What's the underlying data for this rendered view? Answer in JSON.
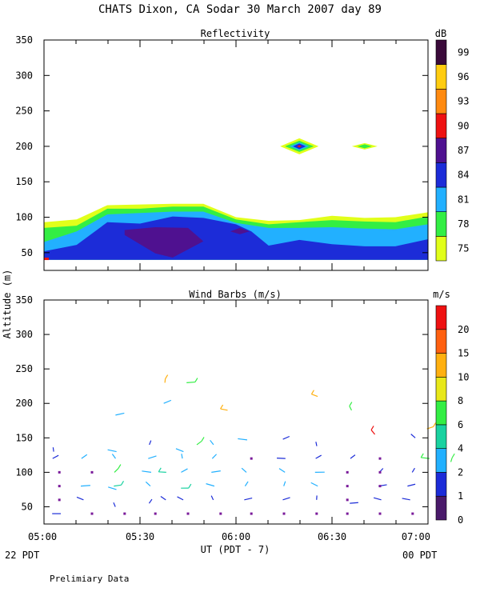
{
  "header": {
    "title": "CHATS Dixon, CA   Sodar   30 March 2007   day  89"
  },
  "footer": {
    "left_date": "22 PDT",
    "right_date": "00 PDT",
    "xlabel": "UT  (PDT - 7)",
    "note": "Prelimiary Data"
  },
  "chart_data": [
    {
      "type": "heatmap",
      "title": "Reflectivity",
      "ylabel": "Altitude (m)",
      "ylim": [
        25,
        350
      ],
      "yticks": [
        50,
        100,
        150,
        200,
        250,
        300,
        350
      ],
      "xticks": [
        "05:00",
        "05:30",
        "06:00",
        "06:30",
        "07:00"
      ],
      "xlim_hours": [
        5.0,
        7.0
      ],
      "colorbar": {
        "unit": "dB",
        "labels": [
          "75",
          "78",
          "81",
          "84",
          "87",
          "90",
          "93",
          "96",
          "99"
        ],
        "colors": [
          "#e1ff1a",
          "#33ee44",
          "#22b0ff",
          "#1c2cd8",
          "#4f1190",
          "#ee1111",
          "#ff8a10",
          "#ffcc10",
          "#3a0a3a"
        ]
      },
      "layers": [
        {
          "dB": 75,
          "top": [
            [
              5.0,
              93
            ],
            [
              5.17,
              97
            ],
            [
              5.33,
              117
            ],
            [
              5.5,
              118
            ],
            [
              5.67,
              119
            ],
            [
              5.83,
              119
            ],
            [
              6.0,
              100
            ],
            [
              6.17,
              95
            ],
            [
              6.33,
              96
            ],
            [
              6.5,
              102
            ],
            [
              6.67,
              99
            ],
            [
              6.83,
              100
            ],
            [
              7.0,
              107
            ]
          ]
        },
        {
          "dB": 78,
          "top": [
            [
              5.0,
              85
            ],
            [
              5.17,
              88
            ],
            [
              5.33,
              112
            ],
            [
              5.5,
              112
            ],
            [
              5.67,
              115
            ],
            [
              5.83,
              115
            ],
            [
              6.0,
              97
            ],
            [
              6.17,
              90
            ],
            [
              6.33,
              93
            ],
            [
              6.5,
              96
            ],
            [
              6.67,
              94
            ],
            [
              6.83,
              93
            ],
            [
              7.0,
              101
            ]
          ]
        },
        {
          "dB": 81,
          "top": [
            [
              5.0,
              65
            ],
            [
              5.17,
              80
            ],
            [
              5.33,
              104
            ],
            [
              5.5,
              106
            ],
            [
              5.67,
              108
            ],
            [
              5.83,
              108
            ],
            [
              6.0,
              92
            ],
            [
              6.17,
              85
            ],
            [
              6.33,
              85
            ],
            [
              6.5,
              86
            ],
            [
              6.67,
              84
            ],
            [
              6.83,
              83
            ],
            [
              7.0,
              90
            ]
          ]
        },
        {
          "dB": 84,
          "top": [
            [
              5.0,
              52
            ],
            [
              5.17,
              61
            ],
            [
              5.33,
              93
            ],
            [
              5.5,
              91
            ],
            [
              5.67,
              101
            ],
            [
              5.83,
              99
            ],
            [
              6.0,
              90
            ],
            [
              6.08,
              80
            ],
            [
              6.17,
              60
            ],
            [
              6.33,
              68
            ],
            [
              6.5,
              62
            ],
            [
              6.67,
              59
            ],
            [
              6.83,
              59
            ],
            [
              7.0,
              69
            ]
          ]
        }
      ],
      "patches": [
        {
          "dB": 87,
          "outline": [
            [
              5.42,
              82
            ],
            [
              5.58,
              86
            ],
            [
              5.75,
              85
            ],
            [
              5.83,
              66
            ],
            [
              5.67,
              43
            ],
            [
              5.58,
              49
            ],
            [
              5.42,
              75
            ]
          ]
        },
        {
          "dB": 87,
          "outline": [
            [
              5.97,
              80
            ],
            [
              6.02,
              85
            ],
            [
              6.07,
              80
            ],
            [
              6.02,
              76
            ]
          ]
        },
        {
          "dB": 75,
          "center": [
            6.33,
            200
          ],
          "peak_dB": 90
        },
        {
          "dB": 75,
          "center": [
            6.67,
            200
          ],
          "peak_dB": 78
        }
      ]
    },
    {
      "type": "scatter",
      "title": "Wind Barbs (m/s)",
      "ylabel": "Altitude (m)",
      "ylim": [
        25,
        350
      ],
      "yticks": [
        50,
        100,
        150,
        200,
        250,
        300,
        350
      ],
      "xticks": [
        "05:00",
        "05:30",
        "06:00",
        "06:30",
        "07:00"
      ],
      "xlim_hours": [
        5.0,
        7.0
      ],
      "colorbar": {
        "unit": "m/s",
        "labels": [
          "0",
          "1",
          "2",
          "4",
          "6",
          "8",
          "10",
          "15",
          "20"
        ],
        "colors": [
          "#4a1a6a",
          "#1c2cd8",
          "#22b0ff",
          "#19d2a0",
          "#33ee44",
          "#e8e81a",
          "#ffb010",
          "#ff6010",
          "#ee1111"
        ]
      },
      "barbs": [
        {
          "t": 5.05,
          "z": 40,
          "c": 1
        },
        {
          "t": 5.05,
          "z": 120,
          "c": 1
        },
        {
          "t": 5.05,
          "z": 130,
          "c": 1
        },
        {
          "t": 5.2,
          "z": 60,
          "c": 1
        },
        {
          "t": 5.2,
          "z": 80,
          "c": 2
        },
        {
          "t": 5.2,
          "z": 120,
          "c": 2
        },
        {
          "t": 5.37,
          "z": 50,
          "c": 1
        },
        {
          "t": 5.37,
          "z": 75,
          "c": 2
        },
        {
          "t": 5.37,
          "z": 80,
          "c": 3
        },
        {
          "t": 5.37,
          "z": 100,
          "c": 4
        },
        {
          "t": 5.37,
          "z": 120,
          "c": 2
        },
        {
          "t": 5.37,
          "z": 130,
          "c": 2
        },
        {
          "t": 5.38,
          "z": 183,
          "c": 2
        },
        {
          "t": 5.55,
          "z": 55,
          "c": 1
        },
        {
          "t": 5.55,
          "z": 80,
          "c": 2
        },
        {
          "t": 5.55,
          "z": 100,
          "c": 2
        },
        {
          "t": 5.55,
          "z": 120,
          "c": 2
        },
        {
          "t": 5.55,
          "z": 140,
          "c": 1
        },
        {
          "t": 5.63,
          "z": 60,
          "c": 1
        },
        {
          "t": 5.63,
          "z": 100,
          "c": 3
        },
        {
          "t": 5.63,
          "z": 200,
          "c": 2
        },
        {
          "t": 5.63,
          "z": 230,
          "c": 6
        },
        {
          "t": 5.72,
          "z": 60,
          "c": 1
        },
        {
          "t": 5.72,
          "z": 77,
          "c": 3
        },
        {
          "t": 5.72,
          "z": 100,
          "c": 2
        },
        {
          "t": 5.72,
          "z": 120,
          "c": 2
        },
        {
          "t": 5.72,
          "z": 130,
          "c": 2
        },
        {
          "t": 5.75,
          "z": 230,
          "c": 4
        },
        {
          "t": 5.8,
          "z": 140,
          "c": 4
        },
        {
          "t": 5.88,
          "z": 60,
          "c": 1
        },
        {
          "t": 5.88,
          "z": 80,
          "c": 2
        },
        {
          "t": 5.88,
          "z": 100,
          "c": 2
        },
        {
          "t": 5.88,
          "z": 120,
          "c": 2
        },
        {
          "t": 5.88,
          "z": 140,
          "c": 2
        },
        {
          "t": 5.95,
          "z": 190,
          "c": 6
        },
        {
          "t": 6.05,
          "z": 60,
          "c": 1
        },
        {
          "t": 6.05,
          "z": 80,
          "c": 2
        },
        {
          "t": 6.05,
          "z": 100,
          "c": 2
        },
        {
          "t": 6.05,
          "z": 147,
          "c": 2
        },
        {
          "t": 6.25,
          "z": 60,
          "c": 1
        },
        {
          "t": 6.25,
          "z": 80,
          "c": 2
        },
        {
          "t": 6.25,
          "z": 100,
          "c": 2
        },
        {
          "t": 6.25,
          "z": 120,
          "c": 1
        },
        {
          "t": 6.25,
          "z": 148,
          "c": 1
        },
        {
          "t": 6.42,
          "z": 60,
          "c": 1
        },
        {
          "t": 6.42,
          "z": 80,
          "c": 2
        },
        {
          "t": 6.42,
          "z": 100,
          "c": 2
        },
        {
          "t": 6.42,
          "z": 120,
          "c": 1
        },
        {
          "t": 6.42,
          "z": 138,
          "c": 1
        },
        {
          "t": 6.42,
          "z": 210,
          "c": 6
        },
        {
          "t": 6.6,
          "z": 55,
          "c": 1
        },
        {
          "t": 6.6,
          "z": 120,
          "c": 1
        },
        {
          "t": 6.6,
          "z": 190,
          "c": 4
        },
        {
          "t": 6.75,
          "z": 60,
          "c": 1
        },
        {
          "t": 6.75,
          "z": 80,
          "c": 1
        },
        {
          "t": 6.75,
          "z": 100,
          "c": 1
        },
        {
          "t": 6.72,
          "z": 155,
          "c": 8
        },
        {
          "t": 6.9,
          "z": 60,
          "c": 1
        },
        {
          "t": 6.9,
          "z": 80,
          "c": 1
        },
        {
          "t": 6.92,
          "z": 100,
          "c": 1
        },
        {
          "t": 6.93,
          "z": 150,
          "c": 1
        },
        {
          "t": 7.0,
          "z": 120,
          "c": 4
        },
        {
          "t": 7.0,
          "z": 163,
          "c": 6
        },
        {
          "t": 7.12,
          "z": 115,
          "c": 4
        }
      ],
      "points": [
        {
          "t": 5.25,
          "z": 40
        },
        {
          "t": 5.42,
          "z": 40
        },
        {
          "t": 5.58,
          "z": 40
        },
        {
          "t": 5.75,
          "z": 40
        },
        {
          "t": 5.92,
          "z": 40
        },
        {
          "t": 6.08,
          "z": 40
        },
        {
          "t": 6.25,
          "z": 40
        },
        {
          "t": 6.42,
          "z": 40
        },
        {
          "t": 6.58,
          "z": 40
        },
        {
          "t": 6.75,
          "z": 40
        },
        {
          "t": 6.92,
          "z": 40
        },
        {
          "t": 5.08,
          "z": 60
        },
        {
          "t": 5.08,
          "z": 80
        },
        {
          "t": 5.08,
          "z": 100
        },
        {
          "t": 5.25,
          "z": 100
        },
        {
          "t": 6.08,
          "z": 120
        },
        {
          "t": 6.58,
          "z": 100
        },
        {
          "t": 6.58,
          "z": 80
        },
        {
          "t": 6.75,
          "z": 120
        },
        {
          "t": 6.75,
          "z": 100
        },
        {
          "t": 6.75,
          "z": 80
        },
        {
          "t": 6.58,
          "z": 60
        }
      ]
    }
  ]
}
